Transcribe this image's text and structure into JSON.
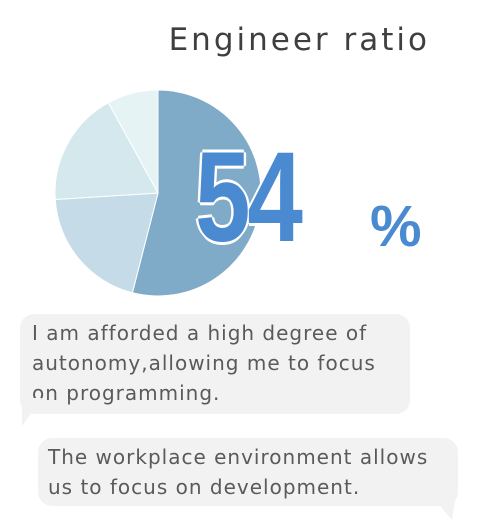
{
  "title": "Engineer ratio",
  "stat": {
    "value": "54",
    "unit": "%",
    "color": "#4a8ad0"
  },
  "chart_data": {
    "type": "pie",
    "values": [
      54,
      20,
      18,
      8
    ],
    "colors": [
      "#7faac8",
      "#c5dce8",
      "#d4e8ee",
      "#e6f3f5"
    ]
  },
  "testimonials": [
    {
      "text": "I am afforded a high degree of autonomy,allowing me to focus on programming."
    },
    {
      "text": "The workplace environment allows us to focus on development."
    }
  ]
}
